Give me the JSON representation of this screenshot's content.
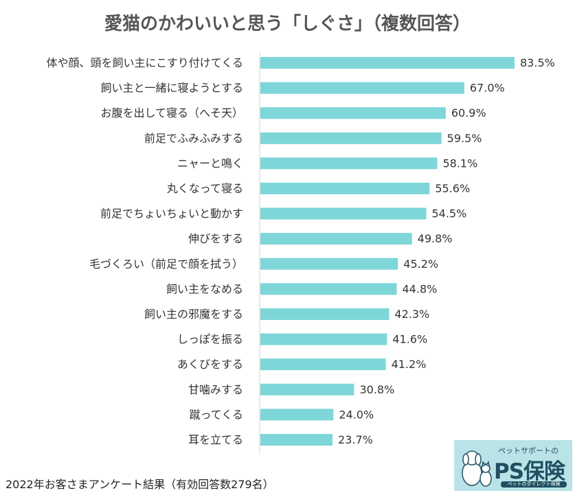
{
  "chart_data": {
    "type": "bar",
    "orientation": "horizontal",
    "title": "愛猫のかわいいと思う「しぐさ」（複数回答）",
    "categories": [
      "体や顔、頭を飼い主にこすり付けてくる",
      "飼い主と一緒に寝ようとする",
      "お腹を出して寝る（へそ天）",
      "前足でふみふみする",
      "ニャーと鳴く",
      "丸くなって寝る",
      "前足でちょいちょいと動かす",
      "伸びをする",
      "毛づくろい（前足で顔を拭う）",
      "飼い主をなめる",
      "飼い主の邪魔をする",
      "しっぽを振る",
      "あくびをする",
      "甘噛みする",
      "蹴ってくる",
      "耳を立てる"
    ],
    "values": [
      83.5,
      67.0,
      60.9,
      59.5,
      58.1,
      55.6,
      54.5,
      49.8,
      45.2,
      44.8,
      42.3,
      41.6,
      41.2,
      30.8,
      24.0,
      23.7
    ],
    "value_labels": [
      "83.5%",
      "67.0%",
      "60.9%",
      "59.5%",
      "58.1%",
      "55.6%",
      "54.5%",
      "49.8%",
      "45.2%",
      "44.8%",
      "42.3%",
      "41.6%",
      "41.2%",
      "30.8%",
      "24.0%",
      "23.7%"
    ],
    "xlim": [
      0,
      100
    ],
    "grid": false,
    "legend": "none",
    "bar_color": "#7fd6d9"
  },
  "footnote": "2022年お客さまアンケート結果（有効回答数279名）",
  "logo": {
    "tagline": "ペットサポートの",
    "name": "PS保険",
    "subline": "ペットのダイレクト保険",
    "icon": "dog-and-cat-icon",
    "bg_color": "#b9e3e6",
    "text_color": "#1f4f61"
  }
}
